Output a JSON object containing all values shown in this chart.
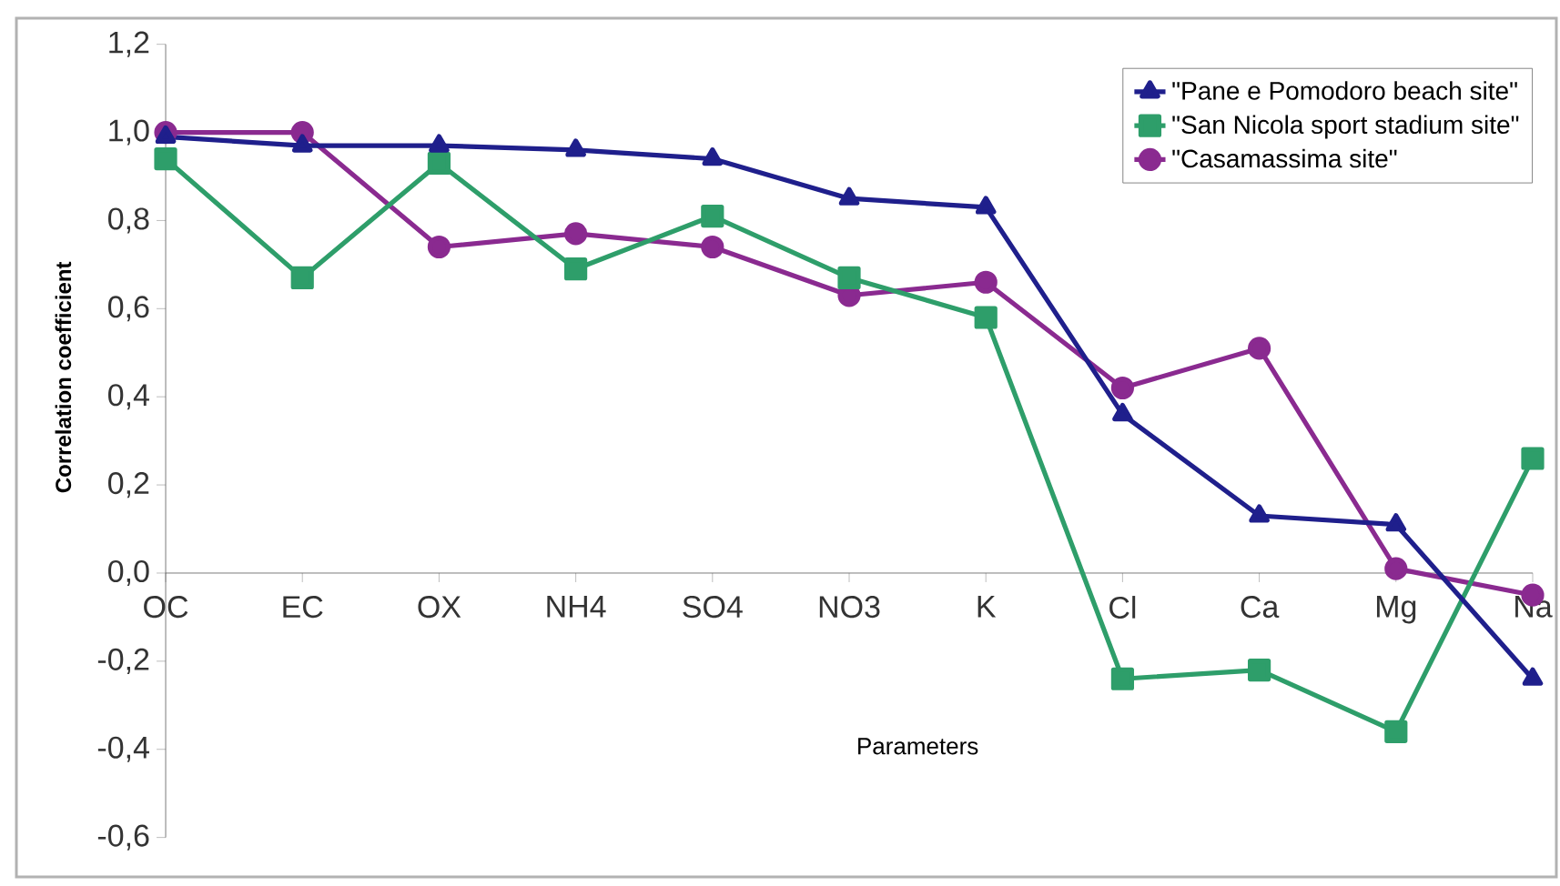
{
  "chart_data": {
    "type": "line",
    "xlabel": "Parameters",
    "ylabel": "Correlation coefficient",
    "categories": [
      "OC",
      "EC",
      "OX",
      "NH4",
      "SO4",
      "NO3",
      "K",
      "Cl",
      "Ca",
      "Mg",
      "Na"
    ],
    "series": [
      {
        "name": "\"Pane e Pomodoro beach site\"",
        "color": "#1f1f8c",
        "marker": "triangle",
        "values": [
          0.99,
          0.97,
          0.97,
          0.96,
          0.94,
          0.85,
          0.83,
          0.36,
          0.13,
          0.11,
          -0.24
        ]
      },
      {
        "name": "\"San Nicola sport stadium site\"",
        "color": "#2e9e6a",
        "marker": "square",
        "values": [
          0.94,
          0.67,
          0.93,
          0.69,
          0.81,
          0.67,
          0.58,
          -0.24,
          -0.22,
          -0.36,
          0.26
        ]
      },
      {
        "name": "\"Casamassima site\"",
        "color": "#8a2a90",
        "marker": "circle",
        "values": [
          1.0,
          1.0,
          0.74,
          0.77,
          0.74,
          0.63,
          0.66,
          0.42,
          0.51,
          0.01,
          -0.05
        ]
      }
    ],
    "ylim": [
      -0.6,
      1.2
    ],
    "yticks": [
      {
        "value": -0.6,
        "label": "-0,6"
      },
      {
        "value": -0.4,
        "label": "-0,4"
      },
      {
        "value": -0.2,
        "label": "-0,2"
      },
      {
        "value": 0,
        "label": "0,0"
      },
      {
        "value": 0.2,
        "label": "0,2"
      },
      {
        "value": 0.4,
        "label": "0,4"
      },
      {
        "value": 0.6,
        "label": "0,6"
      },
      {
        "value": 0.8,
        "label": "0,8"
      },
      {
        "value": 1.0,
        "label": "1,0"
      },
      {
        "value": 1.2,
        "label": "1,2"
      }
    ],
    "legend": "top right",
    "grid": false,
    "line_style": "solid"
  }
}
